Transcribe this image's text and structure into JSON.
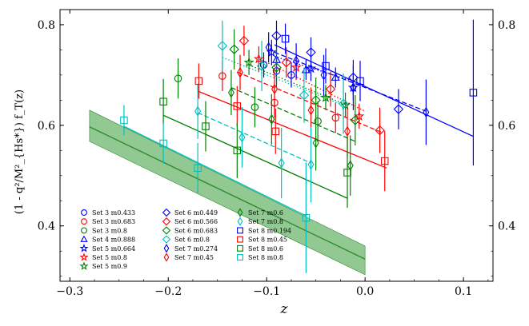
{
  "chart_data": {
    "type": "scatter",
    "xlabel": "z",
    "ylabel": "(1 - q²/M²_{Hs*}) f_T(z)",
    "xlim": [
      -0.31,
      0.13
    ],
    "ylim": [
      0.29,
      0.83
    ],
    "x_ticks": [
      {
        "value": -0.3,
        "label": "−0.3"
      },
      {
        "value": -0.2,
        "label": "−0.2"
      },
      {
        "value": -0.1,
        "label": "−0.1"
      },
      {
        "value": 0.0,
        "label": "0.0"
      },
      {
        "value": 0.1,
        "label": "0.1"
      }
    ],
    "y_ticks": [
      {
        "value": 0.4,
        "label": "0.4"
      },
      {
        "value": 0.6,
        "label": "0.6"
      },
      {
        "value": 0.8,
        "label": "0.8"
      }
    ],
    "band": {
      "name": "continuum fit band",
      "color": "#2e8b2e",
      "fill": "#7fbf7f",
      "x": [
        -0.28,
        0.0
      ],
      "center": [
        0.597,
        0.334
      ],
      "lower": [
        0.568,
        0.303
      ],
      "upper": [
        0.63,
        0.36
      ]
    },
    "series": [
      {
        "name": "Set 3 m0.433",
        "color": "#0000ff",
        "marker": "circle",
        "x": [
          -0.103,
          -0.09,
          -0.075
        ],
        "y": [
          0.72,
          0.708,
          0.7
        ],
        "err": [
          0.025,
          0.025,
          0.025
        ]
      },
      {
        "name": "Set 3 m0.683",
        "color": "#ff0000",
        "marker": "circle",
        "x": [
          -0.145,
          -0.092,
          -0.03
        ],
        "y": [
          0.698,
          0.645,
          0.615
        ],
        "err": [
          0.03,
          0.03,
          0.03
        ]
      },
      {
        "name": "Set 3 m0.8",
        "color": "#008000",
        "marker": "circle",
        "x": [
          -0.19,
          -0.112,
          -0.048
        ],
        "y": [
          0.693,
          0.636,
          0.608
        ],
        "err": [
          0.04,
          0.04,
          0.04
        ]
      },
      {
        "name": "Set 4 m0.888",
        "color": "#0000ff",
        "marker": "triangle",
        "x": [
          -0.09,
          -0.06,
          -0.03
        ],
        "y": [
          0.73,
          0.71,
          0.695
        ],
        "err": [
          0.02,
          0.02,
          0.02
        ]
      },
      {
        "name": "Set 5 m0.664",
        "color": "#0000ff",
        "marker": "star",
        "x": [
          -0.095,
          -0.055,
          -0.012
        ],
        "y": [
          0.745,
          0.713,
          0.675
        ],
        "err": [
          0.025,
          0.025,
          0.025
        ]
      },
      {
        "name": "Set 5 m0.8",
        "color": "#ff0000",
        "marker": "star",
        "x": [
          -0.108,
          -0.07,
          -0.006
        ],
        "y": [
          0.732,
          0.715,
          0.618
        ],
        "err": [
          0.025,
          0.025,
          0.025
        ]
      },
      {
        "name": "Set 5 m0.9",
        "color": "#008000",
        "marker": "star",
        "x": [
          -0.118,
          -0.04,
          -0.02
        ],
        "y": [
          0.725,
          0.655,
          0.64
        ],
        "err": [
          0.025,
          0.025,
          0.025
        ]
      },
      {
        "name": "Set 6 m0.449",
        "color": "#0000ff",
        "marker": "diamond",
        "x": [
          -0.09,
          -0.055,
          -0.012,
          0.034
        ],
        "y": [
          0.778,
          0.745,
          0.695,
          0.632
        ],
        "err": [
          0.03,
          0.03,
          0.035,
          0.04
        ]
      },
      {
        "name": "Set 6 m0.566",
        "color": "#ff0000",
        "marker": "diamond",
        "x": [
          -0.123,
          -0.08,
          -0.035,
          0.015
        ],
        "y": [
          0.768,
          0.725,
          0.672,
          0.59
        ],
        "err": [
          0.03,
          0.03,
          0.035,
          0.045
        ]
      },
      {
        "name": "Set 6 m0.683",
        "color": "#008000",
        "marker": "diamond",
        "x": [
          -0.133,
          -0.09,
          -0.05,
          -0.01
        ],
        "y": [
          0.751,
          0.715,
          0.65,
          0.61
        ],
        "err": [
          0.04,
          0.04,
          0.045,
          0.05
        ]
      },
      {
        "name": "Set 6 m0.8",
        "color": "#00bfbf",
        "marker": "diamond",
        "x": [
          -0.145,
          -0.105,
          -0.062,
          -0.022
        ],
        "y": [
          0.758,
          0.718,
          0.66,
          0.643
        ],
        "err": [
          0.05,
          0.05,
          0.055,
          0.06
        ]
      },
      {
        "name": "Set 7 m0.274",
        "color": "#0000ff",
        "marker": "thin-diamond",
        "x": [
          -0.098,
          -0.07,
          -0.042,
          -0.012,
          0.062
        ],
        "y": [
          0.755,
          0.728,
          0.7,
          0.675,
          0.626
        ],
        "err": [
          0.03,
          0.035,
          0.04,
          0.045,
          0.065
        ]
      },
      {
        "name": "Set 7 m0.45",
        "color": "#ff0000",
        "marker": "thin-diamond",
        "x": [
          -0.127,
          -0.092,
          -0.055,
          -0.018
        ],
        "y": [
          0.705,
          0.672,
          0.63,
          0.588
        ],
        "err": [
          0.035,
          0.04,
          0.045,
          0.05
        ]
      },
      {
        "name": "Set 7 m0.6",
        "color": "#008000",
        "marker": "thin-diamond",
        "x": [
          -0.136,
          -0.095,
          -0.05,
          -0.015
        ],
        "y": [
          0.665,
          0.612,
          0.565,
          0.52
        ],
        "err": [
          0.045,
          0.05,
          0.055,
          0.06
        ]
      },
      {
        "name": "Set 7 m0.8",
        "color": "#00bfbf",
        "marker": "thin-diamond",
        "x": [
          -0.17,
          -0.125,
          -0.085,
          -0.055
        ],
        "y": [
          0.628,
          0.576,
          0.525,
          0.522
        ],
        "err": [
          0.055,
          0.06,
          0.07,
          0.075
        ]
      },
      {
        "name": "Set 8 m0.194",
        "color": "#0000ff",
        "marker": "square",
        "x": [
          -0.081,
          -0.04,
          -0.005,
          0.11
        ],
        "y": [
          0.772,
          0.718,
          0.688,
          0.665
        ],
        "err": [
          0.03,
          0.035,
          0.04,
          0.145
        ]
      },
      {
        "name": "Set 8 m0.45",
        "color": "#ff0000",
        "marker": "square",
        "x": [
          -0.169,
          -0.13,
          -0.091,
          0.02
        ],
        "y": [
          0.688,
          0.638,
          0.588,
          0.529
        ],
        "err": [
          0.035,
          0.04,
          0.045,
          0.06
        ]
      },
      {
        "name": "Set 8 m0.6",
        "color": "#008000",
        "marker": "square",
        "x": [
          -0.205,
          -0.162,
          -0.13,
          -0.018
        ],
        "y": [
          0.647,
          0.598,
          0.55,
          0.506
        ],
        "err": [
          0.045,
          0.05,
          0.055,
          0.07
        ]
      },
      {
        "name": "Set 8 m0.8",
        "color": "#00bfbf",
        "marker": "square",
        "x": [
          -0.245,
          -0.205,
          -0.17,
          -0.06
        ],
        "y": [
          0.61,
          0.564,
          0.515,
          0.416
        ],
        "err": [
          0.03,
          0.04,
          0.05,
          0.11
        ]
      }
    ],
    "fit_lines": [
      {
        "color": "#0000ff",
        "dash": "solid",
        "x": [
          -0.092,
          0.11
        ],
        "y": [
          0.76,
          0.578
        ]
      },
      {
        "color": "#0000ff",
        "dash": "dashed",
        "x": [
          -0.092,
          0.062
        ],
        "y": [
          0.745,
          0.628
        ]
      },
      {
        "color": "#0000ff",
        "dash": "dotted",
        "x": [
          -0.092,
          0.0
        ],
        "y": [
          0.737,
          0.68
        ]
      },
      {
        "color": "#ff0000",
        "dash": "solid",
        "x": [
          -0.17,
          0.022
        ],
        "y": [
          0.668,
          0.515
        ]
      },
      {
        "color": "#ff0000",
        "dash": "dashed",
        "x": [
          -0.13,
          0.018
        ],
        "y": [
          0.706,
          0.585
        ]
      },
      {
        "color": "#ff0000",
        "dash": "dotted",
        "x": [
          -0.11,
          0.0
        ],
        "y": [
          0.735,
          0.628
        ]
      },
      {
        "color": "#008000",
        "dash": "solid",
        "x": [
          -0.205,
          -0.018
        ],
        "y": [
          0.62,
          0.455
        ]
      },
      {
        "color": "#008000",
        "dash": "dashed",
        "x": [
          -0.136,
          -0.01
        ],
        "y": [
          0.675,
          0.568
        ]
      },
      {
        "color": "#008000",
        "dash": "dotted",
        "x": [
          -0.118,
          -0.018
        ],
        "y": [
          0.72,
          0.64
        ]
      },
      {
        "color": "#00bfbf",
        "dash": "solid",
        "x": [
          -0.245,
          -0.06
        ],
        "y": [
          0.598,
          0.42
        ]
      },
      {
        "color": "#00bfbf",
        "dash": "dashed",
        "x": [
          -0.17,
          -0.055
        ],
        "y": [
          0.625,
          0.525
        ]
      },
      {
        "color": "#00bfbf",
        "dash": "dotted",
        "x": [
          -0.145,
          -0.022
        ],
        "y": [
          0.735,
          0.64
        ]
      }
    ],
    "legend": {
      "placement": "lower-left",
      "columns": [
        [
          "Set 3 m0.433",
          "Set 3 m0.683",
          "Set 3 m0.8",
          "Set 4 m0.888",
          "Set 5 m0.664",
          "Set 5 m0.8",
          "Set 5 m0.9"
        ],
        [
          "Set 6 m0.449",
          "Set 6 m0.566",
          "Set 6 m0.683",
          "Set 6 m0.8",
          "Set 7 m0.274",
          "Set 7 m0.45"
        ],
        [
          "Set 7 m0.6",
          "Set 7 m0.8",
          "Set 8 m0.194",
          "Set 8 m0.45",
          "Set 8 m0.6",
          "Set 8 m0.8"
        ]
      ]
    }
  }
}
